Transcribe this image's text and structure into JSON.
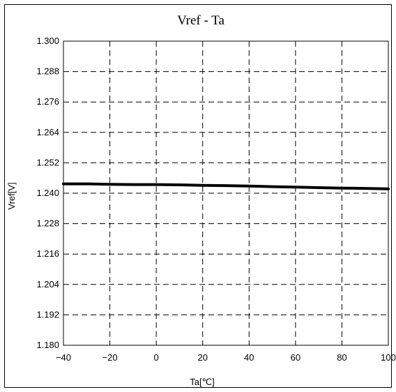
{
  "chart_data": {
    "type": "line",
    "title": "Vref - Ta",
    "xlabel": "Ta[℃]",
    "ylabel": "Vref[V]",
    "xlim": [
      -40,
      100
    ],
    "ylim": [
      1.18,
      1.3
    ],
    "x_ticks": [
      -40,
      -20,
      0,
      20,
      40,
      60,
      80,
      100
    ],
    "x_tick_labels": [
      "−40",
      "−20",
      "0",
      "20",
      "40",
      "60",
      "80",
      "100"
    ],
    "y_ticks": [
      1.18,
      1.192,
      1.204,
      1.216,
      1.228,
      1.24,
      1.252,
      1.264,
      1.276,
      1.288,
      1.3
    ],
    "y_tick_labels": [
      "1.180",
      "1.192",
      "1.204",
      "1.216",
      "1.228",
      "1.240",
      "1.252",
      "1.264",
      "1.276",
      "1.288",
      "1.300"
    ],
    "grid": true,
    "series": [
      {
        "x": [
          -40,
          -30,
          -20,
          -10,
          0,
          10,
          20,
          30,
          40,
          50,
          60,
          70,
          80,
          90,
          100
        ],
        "y": [
          1.2437,
          1.2437,
          1.2435,
          1.2434,
          1.2434,
          1.2433,
          1.2431,
          1.243,
          1.2428,
          1.2426,
          1.2424,
          1.2422,
          1.242,
          1.2419,
          1.2417
        ],
        "color": "#000000"
      }
    ]
  }
}
